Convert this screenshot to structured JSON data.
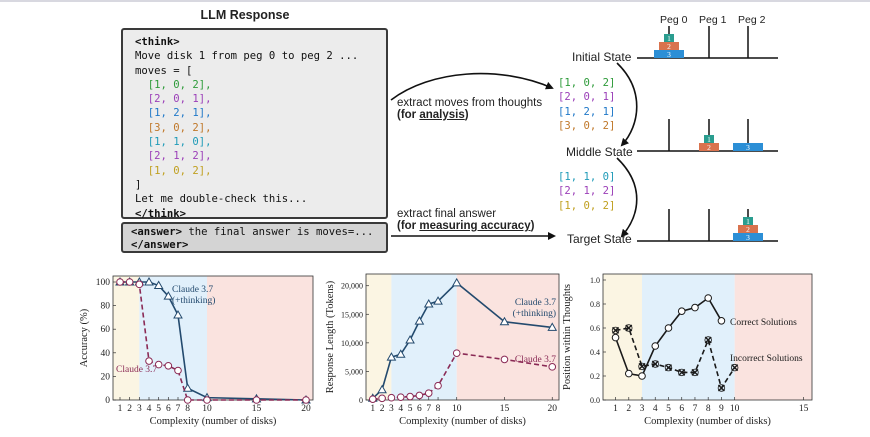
{
  "figure": {
    "response_title": "LLM Response",
    "response_lines": [
      {
        "text": "<think>",
        "color": "#111111",
        "bold": true
      },
      {
        "text": "Move disk 1 from peg 0 to peg 2 ...",
        "color": "#111111"
      },
      {
        "text": "moves = [",
        "color": "#111111"
      },
      {
        "text": "  [1, 0, 2],",
        "color": "#2e9b3a"
      },
      {
        "text": "  [2, 0, 1],",
        "color": "#9b3fb8"
      },
      {
        "text": "  [1, 2, 1],",
        "color": "#1f78c8"
      },
      {
        "text": "  [3, 0, 2],",
        "color": "#c0782a"
      },
      {
        "text": "  [1, 1, 0],",
        "color": "#1f9bb8"
      },
      {
        "text": "  [2, 1, 2],",
        "color": "#9b3fb8"
      },
      {
        "text": "  [1, 0, 2],",
        "color": "#c0a020"
      },
      {
        "text": "]",
        "color": "#111111"
      },
      {
        "text": "Let me double-check this...",
        "color": "#111111"
      },
      {
        "text": "</think>",
        "color": "#111111",
        "bold": true
      }
    ],
    "answer_line1_tag": "<answer>",
    "answer_line1_rest": " the final answer is moves=...",
    "answer_line2": "</answer>",
    "extract_thoughts_label": "extract moves  from thoughts",
    "extract_thoughts_paren_open": "(for ",
    "extract_thoughts_bold": "analysis",
    "extract_thoughts_paren_close": ")",
    "extract_final_label": "extract final answer",
    "extract_final_paren_open": "(for ",
    "extract_final_bold": "measuring accuracy",
    "extract_final_paren_close": ")",
    "pegs": [
      "Peg 0",
      "Peg 1",
      "Peg 2"
    ],
    "states": [
      "Initial State",
      "Middle State",
      "Target State"
    ],
    "moves_group1": [
      {
        "text": "[1, 0, 2]",
        "color": "#2e9b3a"
      },
      {
        "text": "[2, 0, 1]",
        "color": "#9b3fb8"
      },
      {
        "text": "[1, 2, 1]",
        "color": "#1f78c8"
      },
      {
        "text": "[3, 0, 2]",
        "color": "#c0782a"
      }
    ],
    "moves_group2": [
      {
        "text": "[1, 1, 0]",
        "color": "#1f9bb8"
      },
      {
        "text": "[2, 1, 2]",
        "color": "#9b3fb8"
      },
      {
        "text": "[1, 0, 2]",
        "color": "#c0a020"
      }
    ],
    "disk_labels": [
      "1",
      "2",
      "3"
    ],
    "disk_colors": {
      "d1": "#2a9d8f",
      "d2": "#d9734e",
      "d3": "#2c8fd6"
    }
  },
  "chart_data": [
    {
      "type": "line",
      "xlabel": "Complexity (number of disks)",
      "ylabel": "Accuracy (%)",
      "xticks": [
        1,
        2,
        3,
        4,
        5,
        6,
        7,
        8,
        10,
        15,
        20
      ],
      "yticks": [
        0,
        20,
        40,
        60,
        80,
        100
      ],
      "ylim": [
        0,
        100
      ],
      "series": [
        {
          "name": "Claude 3.7\n(+thinking)",
          "style": "solid",
          "marker": "triangle",
          "color": "#234a6e",
          "x": [
            1,
            2,
            3,
            4,
            5,
            6,
            7,
            8,
            10,
            15,
            20
          ],
          "values": [
            100,
            100,
            100,
            100,
            97,
            88,
            72,
            10,
            2,
            1,
            0
          ]
        },
        {
          "name": "Claude 3.7",
          "style": "dashed",
          "marker": "circle",
          "color": "#8a2a55",
          "x": [
            1,
            2,
            3,
            4,
            5,
            6,
            7,
            8,
            10,
            15,
            20
          ],
          "values": [
            100,
            100,
            98,
            33,
            30,
            29,
            25,
            0,
            0,
            0,
            0
          ]
        }
      ]
    },
    {
      "type": "line",
      "xlabel": "Complexity (number of disks)",
      "ylabel": "Response Length (Tokens)",
      "xticks": [
        1,
        2,
        3,
        4,
        5,
        6,
        7,
        8,
        10,
        15,
        20
      ],
      "yticks": [
        0,
        5000,
        10000,
        15000,
        20000
      ],
      "ytick_labels": [
        "0",
        "5,000",
        "10,000",
        "15,000",
        "20,000"
      ],
      "ylim": [
        0,
        21000
      ],
      "series": [
        {
          "name": "Claude 3.7\n(+thinking)",
          "style": "solid",
          "marker": "triangle",
          "color": "#234a6e",
          "x": [
            1,
            2,
            3,
            4,
            5,
            6,
            7,
            8,
            10,
            15,
            20
          ],
          "values": [
            300,
            1800,
            7500,
            8000,
            10500,
            13800,
            16800,
            17300,
            20500,
            13700,
            12700
          ]
        },
        {
          "name": "Claude 3.7",
          "style": "dashed",
          "marker": "circle",
          "color": "#8a2a55",
          "x": [
            1,
            2,
            3,
            4,
            5,
            6,
            7,
            8,
            10,
            15,
            20
          ],
          "values": [
            150,
            300,
            400,
            500,
            600,
            800,
            1200,
            2500,
            8200,
            7100,
            5800
          ]
        }
      ]
    },
    {
      "type": "line",
      "xlabel": "Complexity (number of disks)",
      "ylabel": "Position within Thoughts",
      "xticks": [
        1,
        2,
        3,
        4,
        5,
        6,
        7,
        8,
        9,
        10,
        15
      ],
      "yticks": [
        0.0,
        0.2,
        0.4,
        0.6,
        0.8,
        1.0
      ],
      "ytick_labels": [
        "0.0",
        "0.2",
        "0.4",
        "0.6",
        "0.8",
        "1.0"
      ],
      "ylim": [
        0,
        1.0
      ],
      "series": [
        {
          "name": "Correct Solutions",
          "style": "solid",
          "marker": "circle",
          "color": "#1a1a1a",
          "x": [
            1,
            2,
            3,
            4,
            5,
            6,
            7,
            8,
            9
          ],
          "values": [
            0.52,
            0.22,
            0.2,
            0.45,
            0.6,
            0.74,
            0.77,
            0.85,
            0.66
          ]
        },
        {
          "name": "Incorrect Solutions",
          "style": "dashed",
          "marker": "x",
          "color": "#1a1a1a",
          "x": [
            1,
            2,
            3,
            4,
            5,
            6,
            7,
            8,
            9,
            10
          ],
          "values": [
            0.58,
            0.6,
            0.28,
            0.3,
            0.27,
            0.23,
            0.23,
            0.5,
            0.1,
            0.27
          ]
        }
      ]
    }
  ]
}
